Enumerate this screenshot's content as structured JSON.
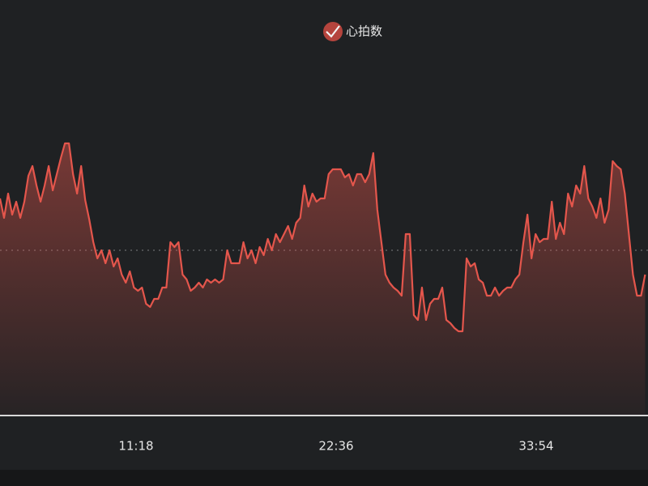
{
  "chart_data": {
    "type": "line",
    "xlim": [
      217,
      2413
    ],
    "xticks": [
      {
        "value": 678,
        "label": "11:18"
      },
      {
        "value": 1356,
        "label": "22:36"
      },
      {
        "value": 2034,
        "label": "33:54"
      }
    ],
    "ylim": [
      0,
      200
    ],
    "ref_line": 102,
    "legend": "top",
    "x": [
      217,
      230.75,
      244.5,
      258.25,
      272,
      285.75,
      299.5,
      313.25,
      327,
      340.75,
      354.5,
      368.25,
      382,
      395.75,
      409.5,
      423.25,
      437,
      450.75,
      464.5,
      478.25,
      492,
      505.75,
      519.5,
      533.25,
      547,
      560.75,
      574.5,
      588.25,
      602,
      615.75,
      629.5,
      643.25,
      657,
      670.75,
      684.5,
      698.25,
      712,
      725.75,
      739.5,
      753.25,
      767,
      780.75,
      794.5,
      808.25,
      822,
      835.75,
      849.5,
      863.25,
      877,
      890.75,
      904.5,
      918.25,
      932,
      945.75,
      959.5,
      973.25,
      987,
      1000.75,
      1014.5,
      1028.25,
      1042,
      1055.75,
      1069.5,
      1083.25,
      1097,
      1110.75,
      1124.5,
      1138.25,
      1152,
      1165.75,
      1179.5,
      1193.25,
      1207,
      1220.75,
      1234.5,
      1248.25,
      1262,
      1275.75,
      1289.5,
      1303.25,
      1317,
      1330.75,
      1344.5,
      1358.25,
      1372,
      1385.75,
      1399.5,
      1413.25,
      1427,
      1440.75,
      1454.5,
      1468.25,
      1482,
      1495.75,
      1509.5,
      1523.25,
      1537,
      1550.75,
      1564.5,
      1578.25,
      1592,
      1605.75,
      1619.5,
      1633.25,
      1647,
      1660.75,
      1674.5,
      1688.25,
      1702,
      1715.75,
      1729.5,
      1743.25,
      1757,
      1770.75,
      1784.5,
      1798.25,
      1812,
      1825.75,
      1839.5,
      1853.25,
      1867,
      1880.75,
      1894.5,
      1908.25,
      1922,
      1935.75,
      1949.5,
      1963.25,
      1977,
      1990.75,
      2004.5,
      2018.25,
      2032,
      2045.75,
      2059.5,
      2073.25,
      2087,
      2100.75,
      2114.5,
      2128.25,
      2142,
      2155.75,
      2169.5,
      2183.25,
      2197,
      2210.75,
      2224.5,
      2238.25,
      2252,
      2265.75,
      2279.5,
      2293.25,
      2307,
      2320.75,
      2334.5,
      2348.25,
      2362,
      2375.75,
      2389.5,
      2403.25
    ],
    "series": [
      {
        "name": "心拍数",
        "color": "#e4564c",
        "values": [
          134,
          122,
          137,
          124,
          132,
          122,
          132,
          148,
          154,
          142,
          132,
          142,
          154,
          139,
          149,
          159,
          168,
          168,
          149,
          137,
          154,
          133,
          121,
          107,
          97,
          102,
          94,
          102,
          92,
          97,
          87,
          82,
          89,
          79,
          77,
          79,
          69,
          67,
          72,
          72,
          79,
          79,
          107,
          104,
          107,
          87,
          84,
          77,
          79,
          82,
          79,
          84,
          82,
          84,
          82,
          84,
          102,
          94,
          94,
          94,
          107,
          97,
          102,
          94,
          104,
          99,
          109,
          102,
          112,
          107,
          112,
          117,
          109,
          119,
          122,
          142,
          129,
          137,
          132,
          134,
          134,
          149,
          152,
          152,
          152,
          147,
          149,
          142,
          149,
          149,
          144,
          149,
          162,
          127,
          107,
          87,
          82,
          79,
          77,
          74,
          112,
          112,
          62,
          59,
          79,
          59,
          69,
          72,
          72,
          79,
          59,
          57,
          54,
          52,
          52,
          97,
          92,
          94,
          84,
          82,
          74,
          74,
          79,
          74,
          77,
          79,
          79,
          84,
          87,
          107,
          124,
          97,
          112,
          107,
          109,
          109,
          132,
          109,
          119,
          112,
          137,
          129,
          142,
          137,
          154,
          134,
          129,
          122,
          134,
          119,
          127,
          157,
          154,
          152,
          137,
          112,
          87,
          74,
          74,
          87
        ]
      }
    ]
  }
}
